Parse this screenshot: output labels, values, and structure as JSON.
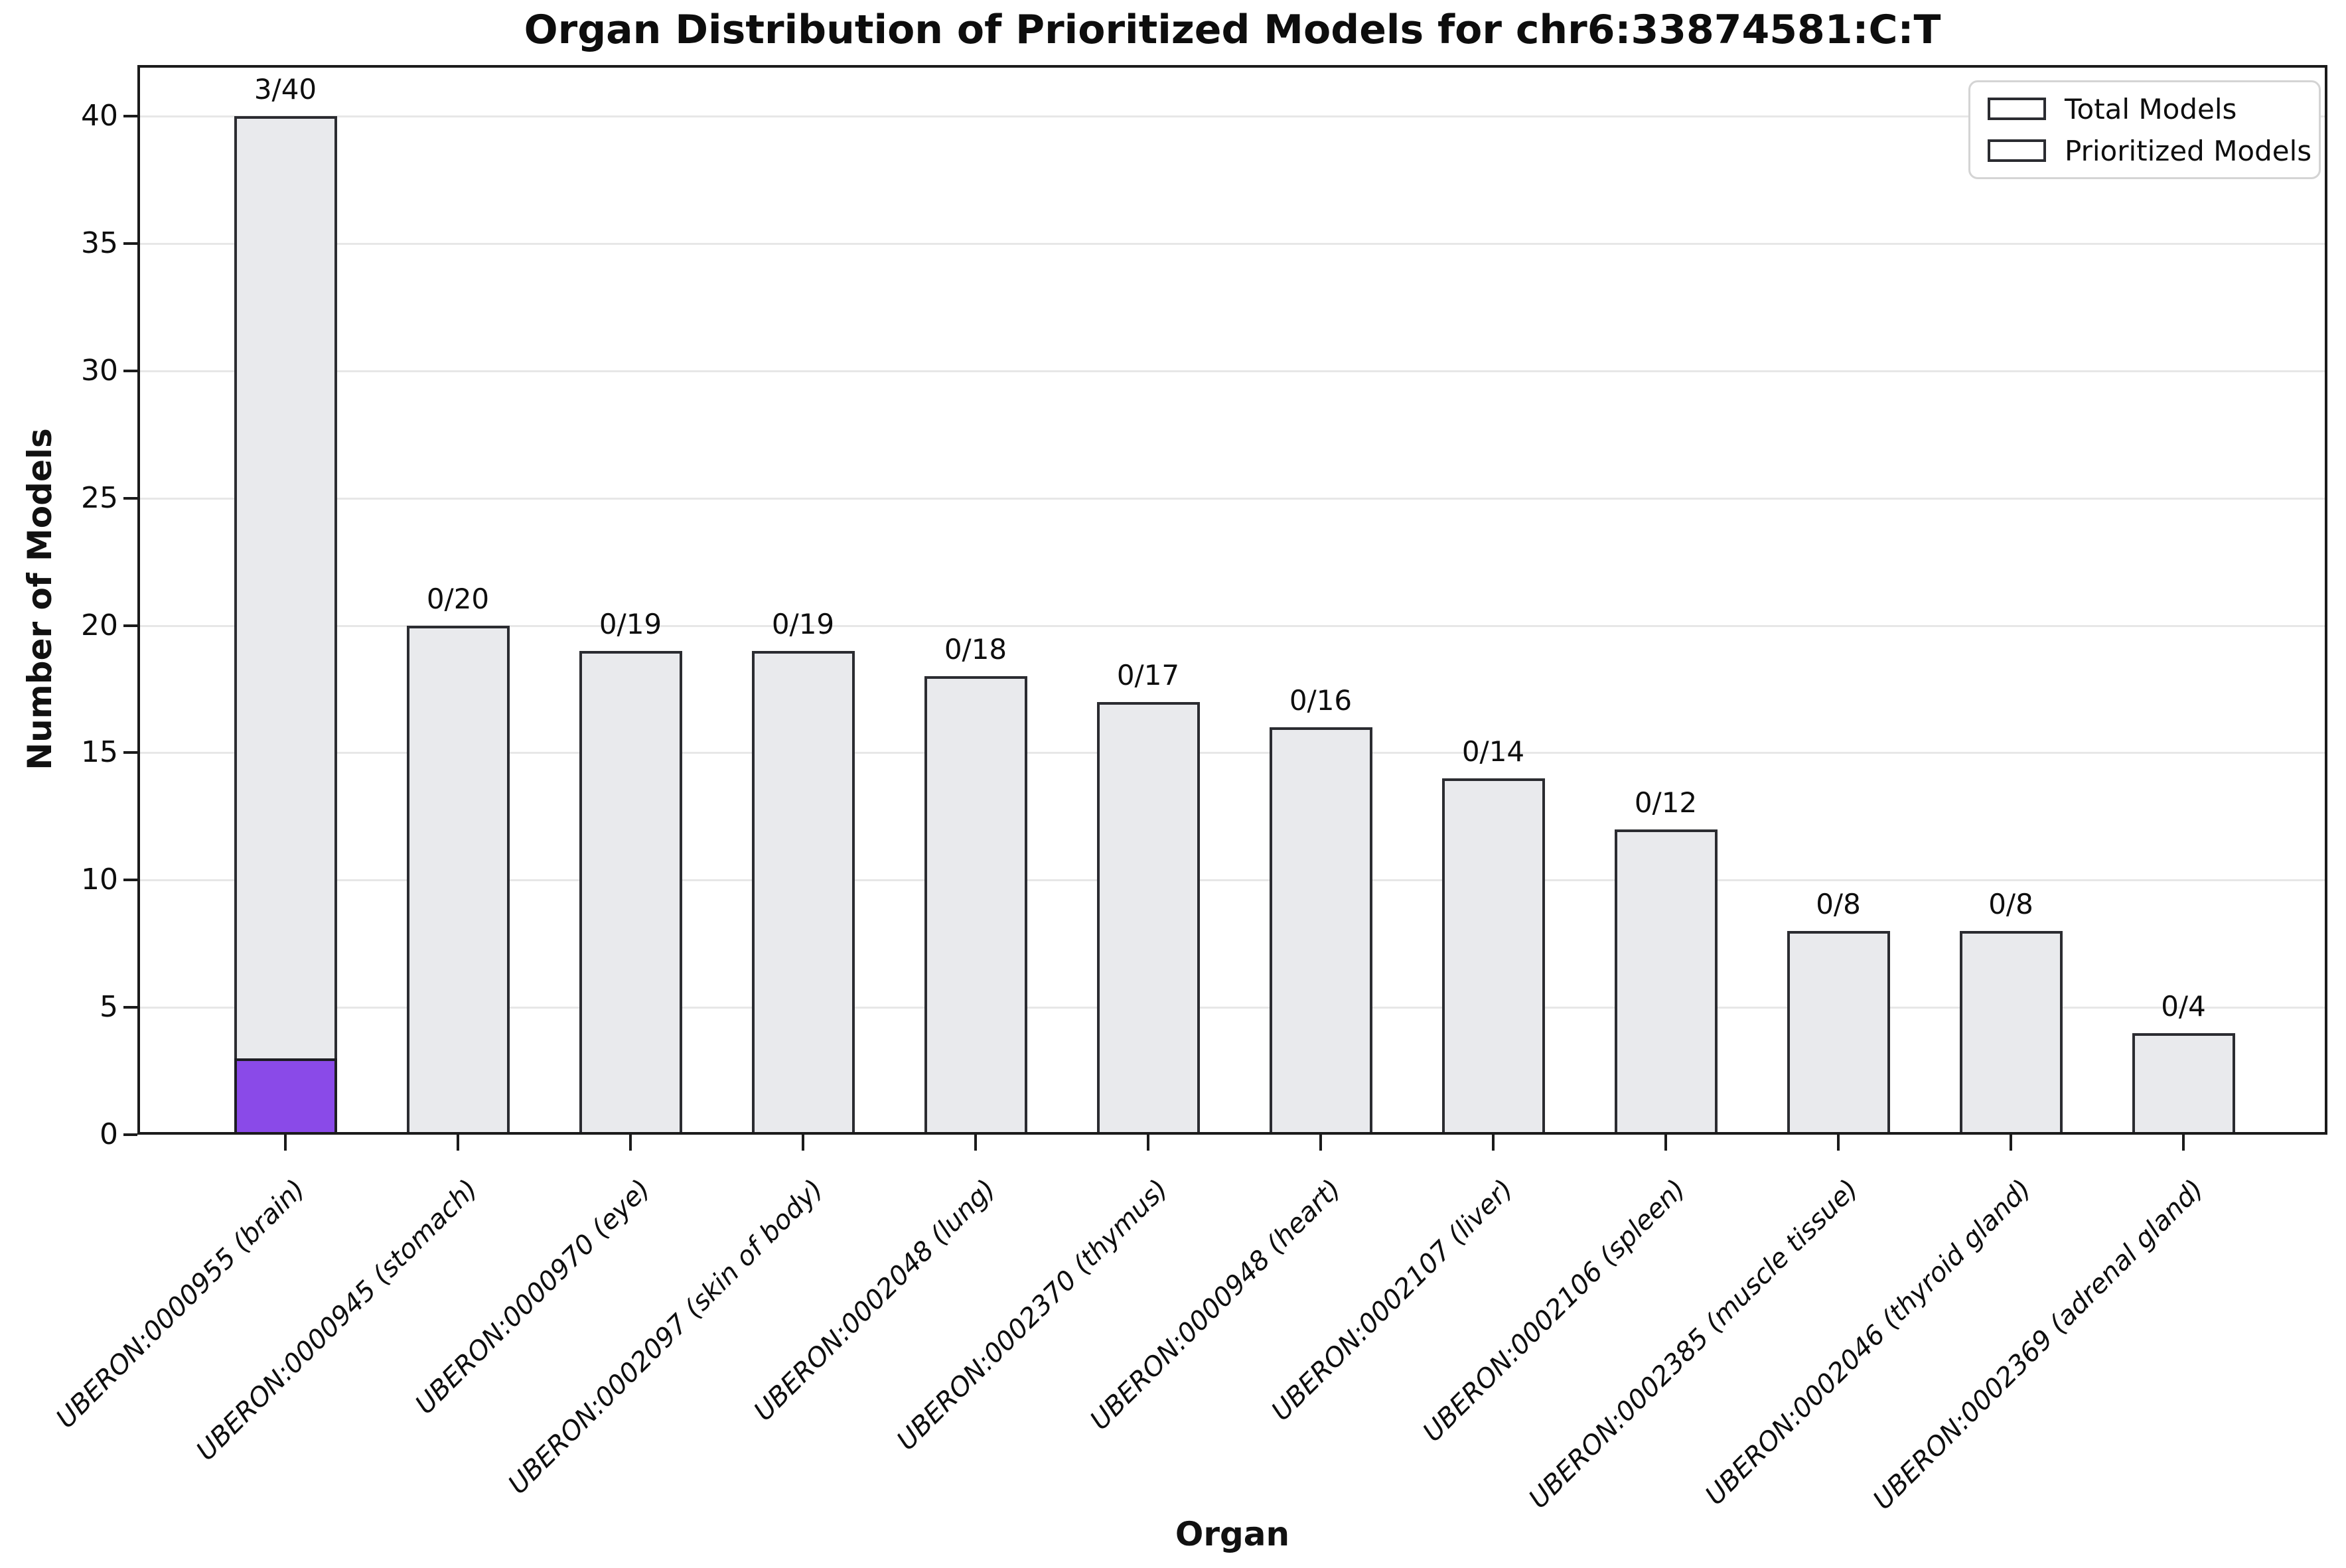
{
  "title": "Organ Distribution of Prioritized Models for chr6:33874581:C:T",
  "chart_data": {
    "type": "bar",
    "title": "Organ Distribution of Prioritized Models for chr6:33874581:C:T",
    "xlabel": "Organ",
    "ylabel": "Number of Models",
    "ylim": [
      0,
      42
    ],
    "yticks": [
      0,
      5,
      10,
      15,
      20,
      25,
      30,
      35,
      40
    ],
    "grid": "horizontal",
    "categories": [
      "UBERON:0000955 (brain)",
      "UBERON:0000945 (stomach)",
      "UBERON:0000970 (eye)",
      "UBERON:0002097 (skin of body)",
      "UBERON:0002048 (lung)",
      "UBERON:0002370 (thymus)",
      "UBERON:0000948 (heart)",
      "UBERON:0002107 (liver)",
      "UBERON:0002106 (spleen)",
      "UBERON:0002385 (muscle tissue)",
      "UBERON:0002046 (thyroid gland)",
      "UBERON:0002369 (adrenal gland)"
    ],
    "series": [
      {
        "name": "Total Models",
        "color": "#e9eaed",
        "values": [
          40,
          20,
          19,
          19,
          18,
          17,
          16,
          14,
          12,
          8,
          8,
          4
        ]
      },
      {
        "name": "Prioritized Models",
        "color": "#8a4ae8",
        "values": [
          3,
          0,
          0,
          0,
          0,
          0,
          0,
          0,
          0,
          0,
          0,
          0
        ]
      }
    ],
    "annotations": [
      "3/40",
      "0/20",
      "0/19",
      "0/19",
      "0/18",
      "0/17",
      "0/16",
      "0/14",
      "0/12",
      "0/8",
      "0/8",
      "0/4"
    ],
    "legend": {
      "position": "upper right",
      "entries": [
        {
          "label": "Total Models",
          "color": "#e9eaed"
        },
        {
          "label": "Prioritized Models",
          "color": "#8a4ae8"
        }
      ]
    }
  },
  "colors": {
    "total_fill": "#e9eaed",
    "prioritized_fill": "#8a4ae8",
    "bar_edge": "#2b2c31",
    "grid": "#e7e7e7",
    "axis": "#1b1b1b"
  }
}
